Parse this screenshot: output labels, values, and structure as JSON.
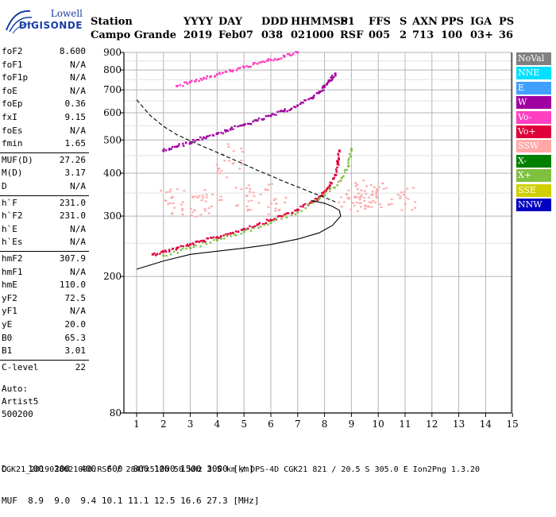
{
  "logo": {
    "line1": "Lowell",
    "line2": "DIGISONDE"
  },
  "header": {
    "row1": [
      "Station",
      "YYYY",
      "DAY",
      "DDD",
      "HHMMSS",
      "P1",
      "FFS",
      "S",
      "AXN",
      "PPS",
      "IGA",
      "PS"
    ],
    "row2": [
      "Campo Grande",
      "2019",
      "Feb07",
      "038",
      "021000",
      "RSF",
      "005",
      "2",
      "713",
      "100",
      "03+",
      "36"
    ]
  },
  "params": {
    "g1": [
      {
        "k": "foF2",
        "v": "8.600"
      },
      {
        "k": "foF1",
        "v": "N/A"
      },
      {
        "k": "foF1p",
        "v": "N/A"
      },
      {
        "k": "foE",
        "v": "N/A"
      },
      {
        "k": "foEp",
        "v": "0.36"
      },
      {
        "k": "fxI",
        "v": "9.15"
      },
      {
        "k": "foEs",
        "v": "N/A"
      },
      {
        "k": "fmin",
        "v": "1.65"
      }
    ],
    "g2": [
      {
        "k": "MUF(D)",
        "v": "27.26"
      },
      {
        "k": "M(D)",
        "v": "3.17"
      },
      {
        "k": "D",
        "v": "N/A"
      }
    ],
    "g3": [
      {
        "k": "h`F",
        "v": "231.0"
      },
      {
        "k": "h`F2",
        "v": "231.0"
      },
      {
        "k": "h`E",
        "v": "N/A"
      },
      {
        "k": "h`Es",
        "v": "N/A"
      }
    ],
    "g4": [
      {
        "k": "hmF2",
        "v": "307.9"
      },
      {
        "k": "hmF1",
        "v": "N/A"
      },
      {
        "k": "hmE",
        "v": "110.0"
      },
      {
        "k": "yF2",
        "v": "72.5"
      },
      {
        "k": "yF1",
        "v": "N/A"
      },
      {
        "k": "yE",
        "v": "20.0"
      },
      {
        "k": "B0",
        "v": "65.3"
      },
      {
        "k": "B1",
        "v": "3.01"
      }
    ],
    "g5": [
      {
        "k": "C-level",
        "v": "22"
      }
    ]
  },
  "auto": [
    "Auto:",
    "Artist5",
    "500200"
  ],
  "legend": [
    {
      "label": "NoVal",
      "bg": "#808080",
      "fg": "#ffffff"
    },
    {
      "label": "NNE",
      "bg": "#00e0ff",
      "fg": "#ffffff"
    },
    {
      "label": "E",
      "bg": "#40a0ff",
      "fg": "#ffffff"
    },
    {
      "label": "W",
      "bg": "#a000a0",
      "fg": "#ffffff"
    },
    {
      "label": "Vo-",
      "bg": "#ff40c0",
      "fg": "#ffffff"
    },
    {
      "label": "Vo+",
      "bg": "#e0003a",
      "fg": "#ffffff"
    },
    {
      "label": "SSW",
      "bg": "#ffa8a8",
      "fg": "#ffffff"
    },
    {
      "label": "X-",
      "bg": "#008000",
      "fg": "#ffffff"
    },
    {
      "label": "X+",
      "bg": "#80c040",
      "fg": "#ffffff"
    },
    {
      "label": "SSE",
      "bg": "#d0d000",
      "fg": "#ffffff"
    },
    {
      "label": "NNW",
      "bg": "#0000c0",
      "fg": "#ffffff"
    }
  ],
  "footer": {
    "row1": "D    100  200  400  600  800 1000 1500 3000 [km]",
    "row2": "MUF  8.9  9.0  9.4 10.1 11.1 12.5 16.6 27.3 [MHz]",
    "filename": "CGK21_2019038021000.RSF / 284fx512h 50 kHz 2.5 km / DPS-4D CGK21 821 / 20.5 S 305.0 E Ion2Png 1.3.20"
  },
  "chart_data": {
    "type": "scatter",
    "title": "",
    "xlabel": "",
    "ylabel": "",
    "xlim": [
      1,
      15
    ],
    "ylim": [
      80,
      900
    ],
    "x_ticks": [
      "1",
      "2",
      "3",
      "4",
      "5",
      "6",
      "7",
      "8",
      "9",
      "10",
      "11",
      "12",
      "13",
      "14",
      "15"
    ],
    "y_ticks": [
      {
        "value": 200,
        "label": "200"
      },
      {
        "value": 300,
        "label": "300"
      },
      {
        "value": 400,
        "label": "400"
      },
      {
        "value": 500,
        "label": "500"
      },
      {
        "value": 600,
        "label": "600"
      },
      {
        "value": 700,
        "label": "700"
      },
      {
        "value": 800,
        "label": "800"
      },
      {
        "value": 900,
        "label": "900"
      },
      {
        "value": 80,
        "label": "80"
      }
    ],
    "grid": true,
    "y_scale": "log",
    "series": [
      {
        "name": "Vo+",
        "color": "#e0003a",
        "trace": "O trace (1st hop)",
        "x": [
          1.6,
          2.0,
          2.5,
          3.0,
          3.5,
          4.0,
          4.5,
          5.0,
          5.5,
          6.0,
          6.5,
          7.0,
          7.5,
          7.8,
          8.0,
          8.2,
          8.4,
          8.5,
          8.55
        ],
        "y": [
          232,
          236,
          242,
          248,
          254,
          260,
          267,
          275,
          283,
          292,
          302,
          313,
          328,
          340,
          352,
          368,
          395,
          430,
          465
        ]
      },
      {
        "name": "X+",
        "color": "#80c040",
        "trace": "X trace (1st hop)",
        "x": [
          2.0,
          3.0,
          4.0,
          5.0,
          6.0,
          7.0,
          8.0,
          8.6,
          8.9,
          9.0
        ],
        "y": [
          230,
          242,
          255,
          270,
          287,
          308,
          345,
          380,
          420,
          470
        ]
      },
      {
        "name": "W",
        "color": "#a000a0",
        "trace": "O trace (2nd hop)",
        "x": [
          2.0,
          2.5,
          3.0,
          3.5,
          4.0,
          4.5,
          5.0,
          5.5,
          6.0,
          6.5,
          7.0,
          7.5,
          7.8,
          8.0,
          8.2,
          8.4
        ],
        "y": [
          465,
          478,
          492,
          508,
          522,
          537,
          553,
          570,
          588,
          607,
          630,
          662,
          690,
          715,
          745,
          780
        ]
      },
      {
        "name": "Vo-",
        "color": "#ff40c0",
        "trace": "O trace (3rd hop)",
        "x": [
          2.5,
          3.0,
          3.5,
          4.0,
          4.5,
          5.0,
          5.5,
          6.0,
          6.5,
          7.0
        ],
        "y": [
          718,
          738,
          757,
          776,
          795,
          815,
          835,
          855,
          875,
          900
        ]
      },
      {
        "name": "SSW",
        "color": "#ffa8a8",
        "trace": "oblique spread",
        "x": [
          2.2,
          2.6,
          3.0,
          3.4,
          3.8,
          4.2,
          4.6,
          5.0,
          5.4,
          5.8,
          6.2,
          8.8,
          9.0,
          9.2,
          9.4,
          9.6,
          9.8,
          10.0,
          10.5,
          11.0
        ],
        "y": [
          340,
          330,
          322,
          318,
          330,
          420,
          450,
          340,
          335,
          345,
          320,
          350,
          340,
          345,
          338,
          350,
          342,
          348,
          340,
          336
        ]
      }
    ],
    "curves": [
      {
        "name": "N(h) profile",
        "style": "solid",
        "x": [
          1.0,
          2.0,
          3.0,
          4.0,
          5.0,
          6.0,
          7.0,
          7.8,
          8.3,
          8.6,
          8.55,
          8.3,
          8.0,
          7.5
        ],
        "y": [
          210,
          222,
          232,
          237,
          242,
          248,
          257,
          268,
          282,
          300,
          312,
          320,
          327,
          333
        ]
      },
      {
        "name": "MUF(D) curve",
        "style": "dashed",
        "x": [
          1.0,
          1.5,
          2.0,
          2.5,
          3.0,
          3.5,
          4.0,
          4.5,
          5.0,
          5.5,
          6.0,
          6.5,
          7.0,
          7.5,
          8.0,
          8.4
        ],
        "y": [
          655,
          590,
          548,
          518,
          497,
          478,
          460,
          442,
          425,
          408,
          393,
          378,
          365,
          352,
          340,
          330
        ]
      }
    ]
  }
}
